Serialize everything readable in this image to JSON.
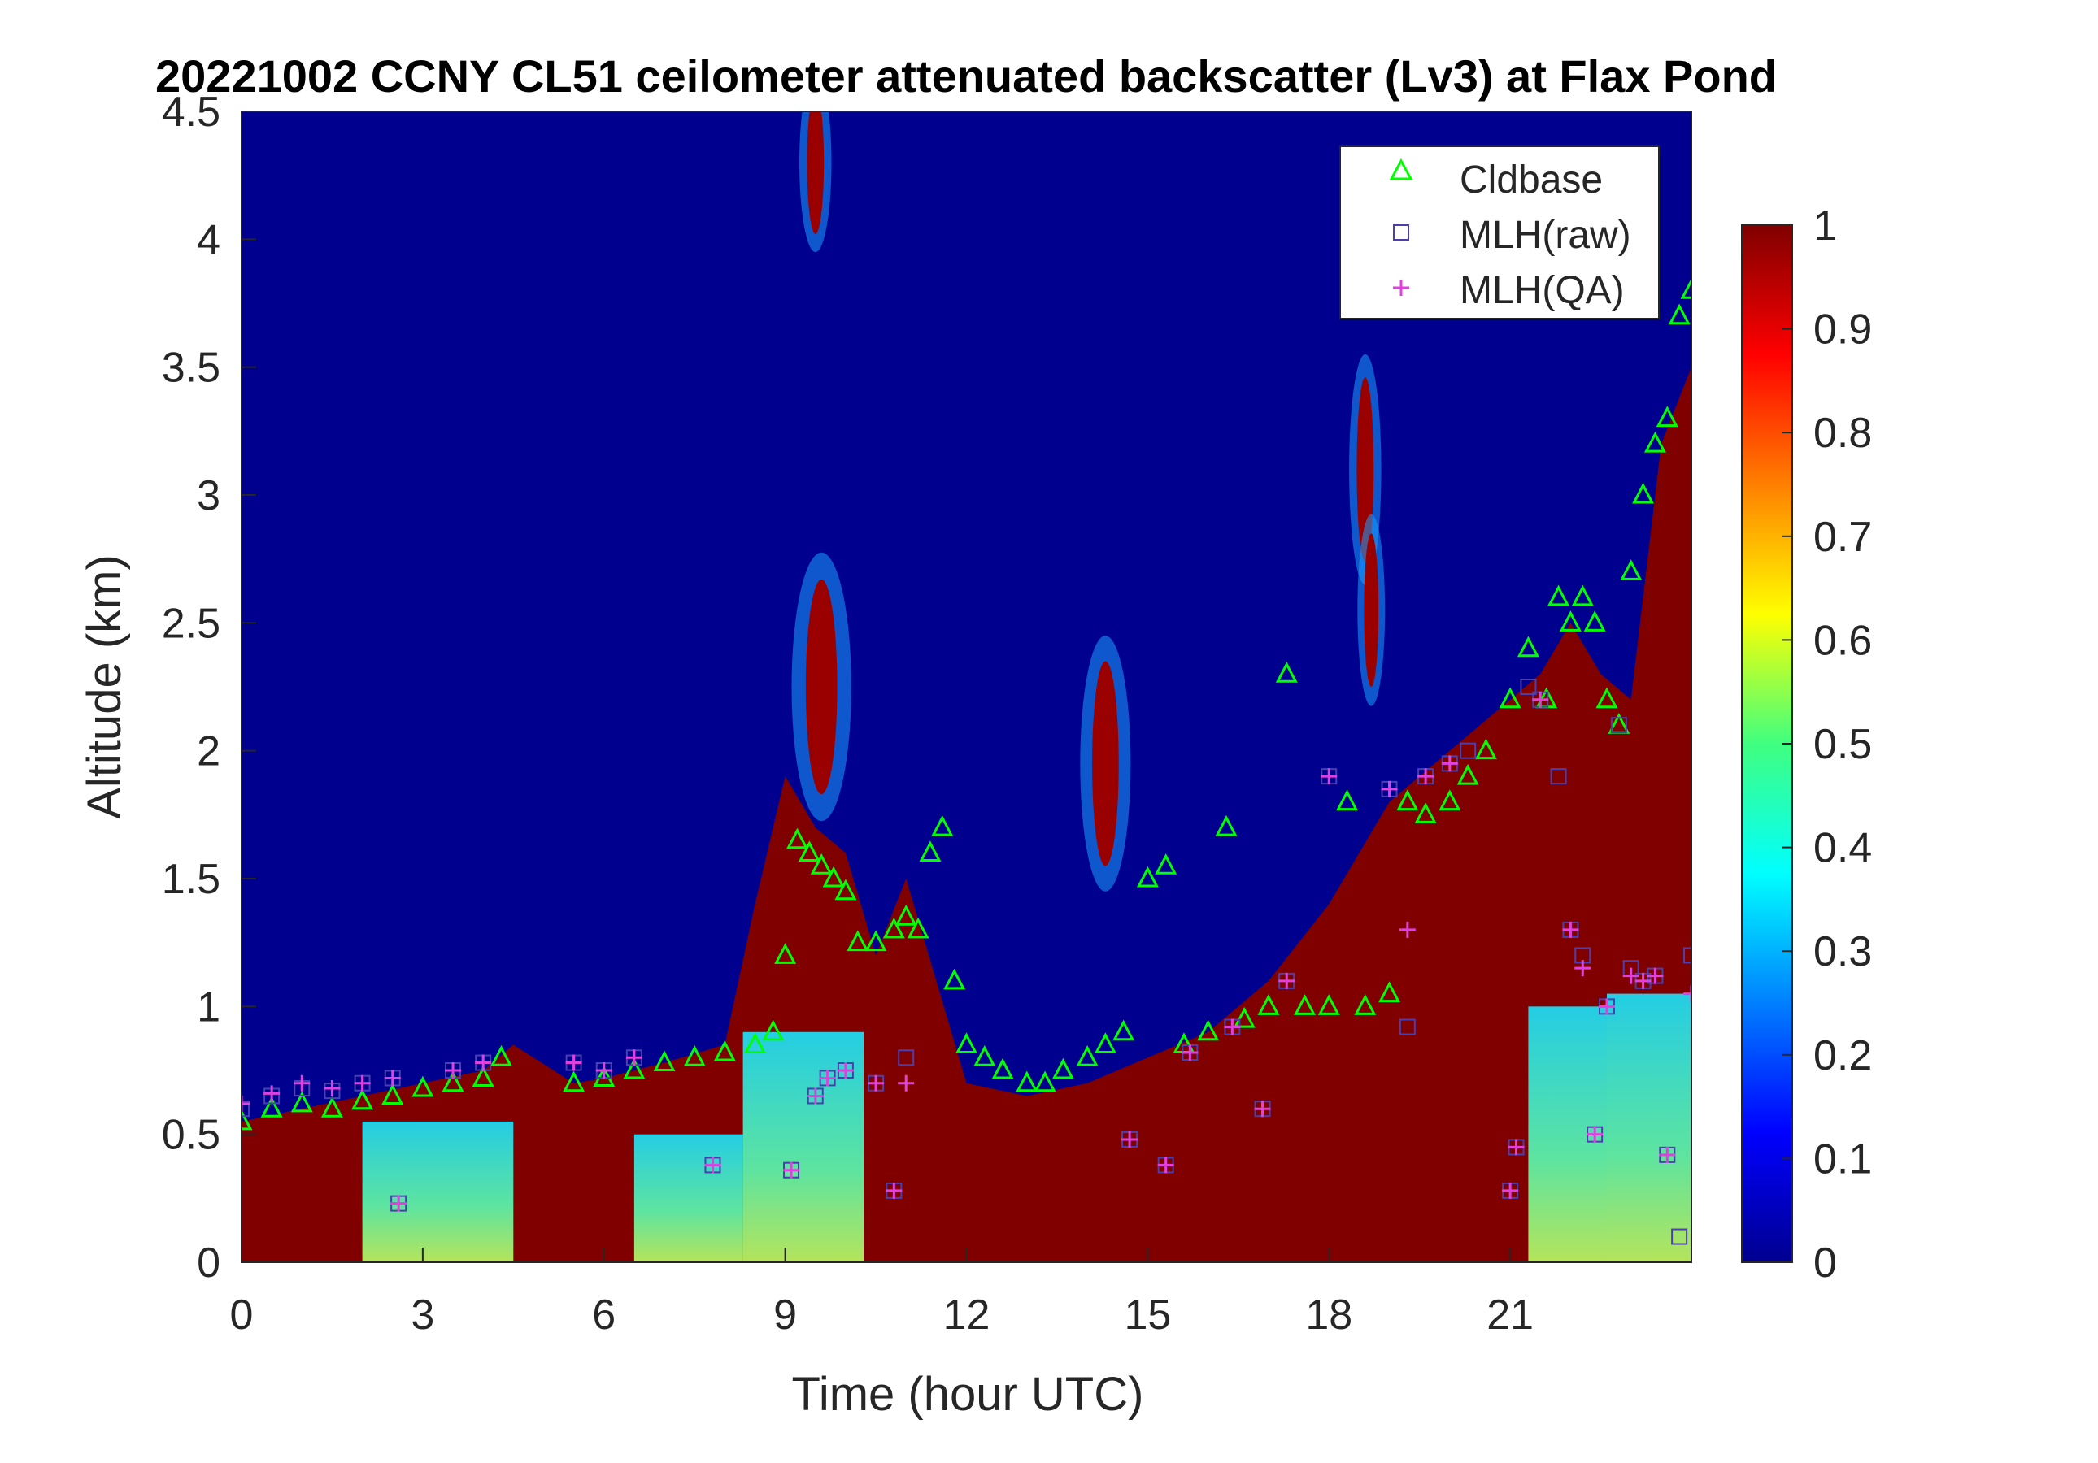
{
  "chart_data": {
    "type": "heatmap",
    "title": "20221002 CCNY CL51 ceilometer attenuated backscatter (Lv3) at Flax Pond",
    "xlabel": "Time (hour UTC)",
    "ylabel": "Altitude (km)",
    "xlim": [
      0,
      24
    ],
    "ylim": [
      0,
      4.5
    ],
    "x_ticks": [
      "0",
      "3",
      "6",
      "9",
      "12",
      "15",
      "18",
      "21"
    ],
    "x_tick_values": [
      0,
      3,
      6,
      9,
      12,
      15,
      18,
      21
    ],
    "y_ticks": [
      "0",
      "0.5",
      "1",
      "1.5",
      "2",
      "2.5",
      "3",
      "3.5",
      "4",
      "4.5"
    ],
    "y_tick_values": [
      0,
      0.5,
      1,
      1.5,
      2,
      2.5,
      3,
      3.5,
      4,
      4.5
    ],
    "colorbar": {
      "colormap": "jet",
      "range": [
        0,
        1
      ],
      "ticks": [
        "0",
        "0.1",
        "0.2",
        "0.3",
        "0.4",
        "0.5",
        "0.6",
        "0.7",
        "0.8",
        "0.9",
        "1"
      ],
      "tick_values": [
        0,
        0.1,
        0.2,
        0.3,
        0.4,
        0.5,
        0.6,
        0.7,
        0.8,
        0.9,
        1
      ]
    },
    "legend": {
      "placement": "top-right",
      "entries": [
        {
          "label": "Cldbase",
          "marker": "triangle",
          "color": "#00ff00"
        },
        {
          "label": "MLH(raw)",
          "marker": "square",
          "color": "#4b3fb0"
        },
        {
          "label": "MLH(QA)",
          "marker": "plus",
          "color": "#e040e0"
        }
      ]
    },
    "background_layers": [
      {
        "name": "mixed layer aerosol top",
        "t": [
          0,
          1,
          2,
          3,
          4,
          4.5,
          5.5,
          6,
          7,
          8,
          8.5,
          9,
          9.5,
          10,
          10.5,
          11,
          12,
          13,
          14,
          15,
          16,
          17,
          18,
          19,
          20,
          21,
          21.5,
          22,
          22.5,
          23,
          23.5,
          24
        ],
        "z": [
          0.55,
          0.6,
          0.65,
          0.7,
          0.75,
          0.85,
          0.7,
          0.72,
          0.78,
          0.85,
          1.4,
          1.9,
          1.7,
          1.6,
          1.2,
          1.5,
          0.7,
          0.65,
          0.7,
          0.8,
          0.9,
          1.1,
          1.4,
          1.8,
          2.0,
          2.2,
          2.3,
          2.5,
          2.3,
          2.2,
          3.2,
          3.5
        ]
      }
    ],
    "series": [
      {
        "name": "Cldbase",
        "x": [
          0,
          0.5,
          1,
          1.5,
          2,
          2.5,
          3,
          3.5,
          4,
          4.3,
          5.5,
          6,
          6.5,
          7,
          7.5,
          8,
          8.5,
          8.8,
          9,
          9.2,
          9.4,
          9.6,
          9.8,
          10,
          10.2,
          10.5,
          10.8,
          11,
          11.2,
          11.4,
          11.6,
          11.8,
          12,
          12.3,
          12.6,
          13,
          13.3,
          13.6,
          14,
          14.3,
          14.6,
          15,
          15.3,
          15.6,
          16,
          16.3,
          16.6,
          17,
          17.3,
          17.6,
          18,
          18.3,
          18.6,
          19,
          19.3,
          19.6,
          20,
          20.3,
          20.6,
          21,
          21.3,
          21.6,
          21.8,
          22,
          22.2,
          22.4,
          22.6,
          22.8,
          23,
          23.2,
          23.4,
          23.6,
          23.8,
          24
        ],
        "y": [
          0.55,
          0.6,
          0.62,
          0.6,
          0.63,
          0.65,
          0.68,
          0.7,
          0.72,
          0.8,
          0.7,
          0.72,
          0.75,
          0.78,
          0.8,
          0.82,
          0.85,
          0.9,
          1.2,
          1.65,
          1.6,
          1.55,
          1.5,
          1.45,
          1.25,
          1.25,
          1.3,
          1.35,
          1.3,
          1.6,
          1.7,
          1.1,
          0.85,
          0.8,
          0.75,
          0.7,
          0.7,
          0.75,
          0.8,
          0.85,
          0.9,
          1.5,
          1.55,
          0.85,
          0.9,
          1.7,
          0.95,
          1.0,
          2.3,
          1.0,
          1.0,
          1.8,
          1.0,
          1.05,
          1.8,
          1.75,
          1.8,
          1.9,
          2.0,
          2.2,
          2.4,
          2.2,
          2.6,
          2.5,
          2.6,
          2.5,
          2.2,
          2.1,
          2.7,
          3.0,
          3.2,
          3.3,
          3.7,
          3.8
        ]
      },
      {
        "name": "MLH(raw)",
        "x": [
          0,
          0.5,
          1,
          1.5,
          2,
          2.5,
          2.6,
          3.5,
          4,
          5.5,
          6,
          6.5,
          7.8,
          9.1,
          9.5,
          9.7,
          10,
          10.5,
          10.8,
          11,
          14.7,
          15.3,
          15.7,
          16.4,
          16.9,
          17.3,
          18,
          19,
          19.3,
          19.6,
          20,
          20.3,
          21,
          21.1,
          21.3,
          21.5,
          21.8,
          22,
          22.2,
          22.4,
          22.6,
          22.8,
          23,
          23.2,
          23.4,
          23.6,
          23.8,
          24
        ],
        "y": [
          0.6,
          0.65,
          0.68,
          0.67,
          0.7,
          0.72,
          0.23,
          0.75,
          0.78,
          0.78,
          0.75,
          0.8,
          0.38,
          0.36,
          0.65,
          0.72,
          0.75,
          0.7,
          0.28,
          0.8,
          0.48,
          0.38,
          0.82,
          0.92,
          0.6,
          1.1,
          1.9,
          1.85,
          0.92,
          1.9,
          1.95,
          2.0,
          0.28,
          0.45,
          2.25,
          2.2,
          1.9,
          1.3,
          1.2,
          0.5,
          1.0,
          2.1,
          1.15,
          1.1,
          1.12,
          0.42,
          0.1,
          1.2
        ]
      },
      {
        "name": "MLH(QA)",
        "x": [
          0,
          0.5,
          1,
          1.5,
          2,
          2.5,
          2.6,
          3.5,
          4,
          5.5,
          6,
          6.5,
          7.8,
          9.1,
          9.5,
          9.7,
          10,
          10.5,
          10.8,
          11,
          14.7,
          15.3,
          15.7,
          16.4,
          16.9,
          17.3,
          18,
          19,
          19.3,
          19.6,
          20,
          21,
          21.1,
          21.5,
          22,
          22.2,
          22.4,
          22.6,
          23,
          23.2,
          23.4,
          23.6,
          24
        ],
        "y": [
          0.62,
          0.66,
          0.7,
          0.68,
          0.7,
          0.72,
          0.23,
          0.75,
          0.78,
          0.78,
          0.75,
          0.8,
          0.38,
          0.36,
          0.65,
          0.72,
          0.75,
          0.7,
          0.28,
          0.7,
          0.48,
          0.38,
          0.82,
          0.92,
          0.6,
          1.1,
          1.9,
          1.85,
          1.3,
          1.9,
          1.95,
          0.28,
          0.45,
          2.2,
          1.3,
          1.15,
          0.5,
          1.0,
          1.12,
          1.1,
          1.12,
          0.42,
          1.05
        ]
      }
    ]
  }
}
